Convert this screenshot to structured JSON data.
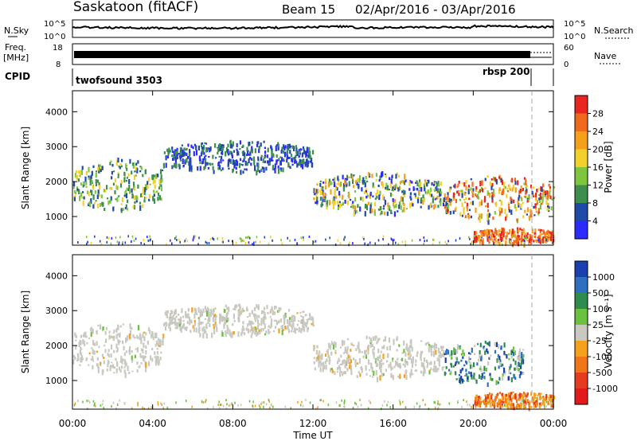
{
  "header": {
    "station": "Saskatoon (fitACF)",
    "beam": "Beam 15",
    "date_range": "02/Apr/2016 - 03/Apr/2016"
  },
  "top_panels": {
    "nsky": {
      "label": "N.Sky",
      "ticks": [
        "10^5",
        "10^0"
      ]
    },
    "nsearch": {
      "label": "N.Search",
      "ticks": [
        "10^5",
        "10^0"
      ]
    },
    "freq": {
      "label_top": "Freq.",
      "label_unit": "[MHz]",
      "ticks": [
        "18",
        "8"
      ]
    },
    "nave": {
      "label": "Nave",
      "ticks": [
        "60",
        "0"
      ]
    },
    "cpid": {
      "label": "CPID",
      "modes": [
        {
          "name": "twofsound 3503"
        },
        {
          "name": "rbsp 200"
        }
      ]
    }
  },
  "colorbars": {
    "power": {
      "title": "Power [dB]",
      "ticks": [
        "28",
        "24",
        "20",
        "16",
        "12",
        "8",
        "4"
      ],
      "colors": [
        "#e8251f",
        "#f06a1e",
        "#f5a019",
        "#f4d12a",
        "#7ec63e",
        "#3e8f4e",
        "#1f4aa8",
        "#2b2bff"
      ]
    },
    "velocity": {
      "title": "Velocity [m s⁻¹]",
      "ticks": [
        "1000",
        "500",
        "100",
        "25",
        "-25",
        "-100",
        "-500",
        "-1000"
      ],
      "colors": [
        "#1c3fb0",
        "#2f6fc0",
        "#2f8c4f",
        "#6cc23e",
        "#c9c9c2",
        "#f4a21c",
        "#f07618",
        "#e53b1e",
        "#e21a1a"
      ]
    }
  },
  "chart_data": [
    {
      "type": "heatmap",
      "panel": "power",
      "ylabel": "Slant Range [km]",
      "ylim": [
        180,
        4600
      ],
      "yticks": [
        1000,
        2000,
        3000,
        4000
      ],
      "xticks": [
        "00:00",
        "04:00",
        "08:00",
        "12:00",
        "16:00",
        "20:00",
        "00:00"
      ],
      "xlim_hours": [
        0,
        24
      ],
      "dashed_line_hour": 23.0,
      "echo_regions": [
        {
          "t0": 0.0,
          "t1": 4.5,
          "r0": 1200,
          "r1": 2700,
          "level": "12-20 dB"
        },
        {
          "t0": 4.5,
          "t1": 12.0,
          "r0": 2300,
          "r1": 3200,
          "level": "4-12 dB"
        },
        {
          "t0": 12.0,
          "t1": 18.5,
          "r0": 1100,
          "r1": 2300,
          "level": "12-24 dB"
        },
        {
          "t0": 18.5,
          "t1": 24.0,
          "r0": 900,
          "r1": 2200,
          "level": "16-28 dB"
        },
        {
          "t0": 20.0,
          "t1": 24.0,
          "r0": 250,
          "r1": 700,
          "level": "20-28 dB"
        }
      ]
    },
    {
      "type": "heatmap",
      "panel": "velocity",
      "ylabel": "Slant Range [km]",
      "ylim": [
        180,
        4600
      ],
      "yticks": [
        1000,
        2000,
        3000,
        4000
      ],
      "xticks": [
        "00:00",
        "04:00",
        "08:00",
        "12:00",
        "16:00",
        "20:00",
        "00:00"
      ],
      "xlabel": "Time UT",
      "xlim_hours": [
        0,
        24
      ],
      "dashed_line_hour": 23.0,
      "echo_regions": [
        {
          "t0": 0.0,
          "t1": 4.5,
          "r0": 1200,
          "r1": 2700,
          "level": "-25 to 25 m/s"
        },
        {
          "t0": 4.5,
          "t1": 12.0,
          "r0": 2300,
          "r1": 3200,
          "level": "-25 to 25 m/s"
        },
        {
          "t0": 12.0,
          "t1": 18.5,
          "r0": 1100,
          "r1": 2300,
          "level": "-25 to 25 m/s"
        },
        {
          "t0": 18.5,
          "t1": 22.5,
          "r0": 900,
          "r1": 2200,
          "level": "25 to 500 m/s"
        },
        {
          "t0": 20.0,
          "t1": 24.0,
          "r0": 250,
          "r1": 700,
          "level": "-500 to -100 m/s"
        }
      ]
    }
  ]
}
